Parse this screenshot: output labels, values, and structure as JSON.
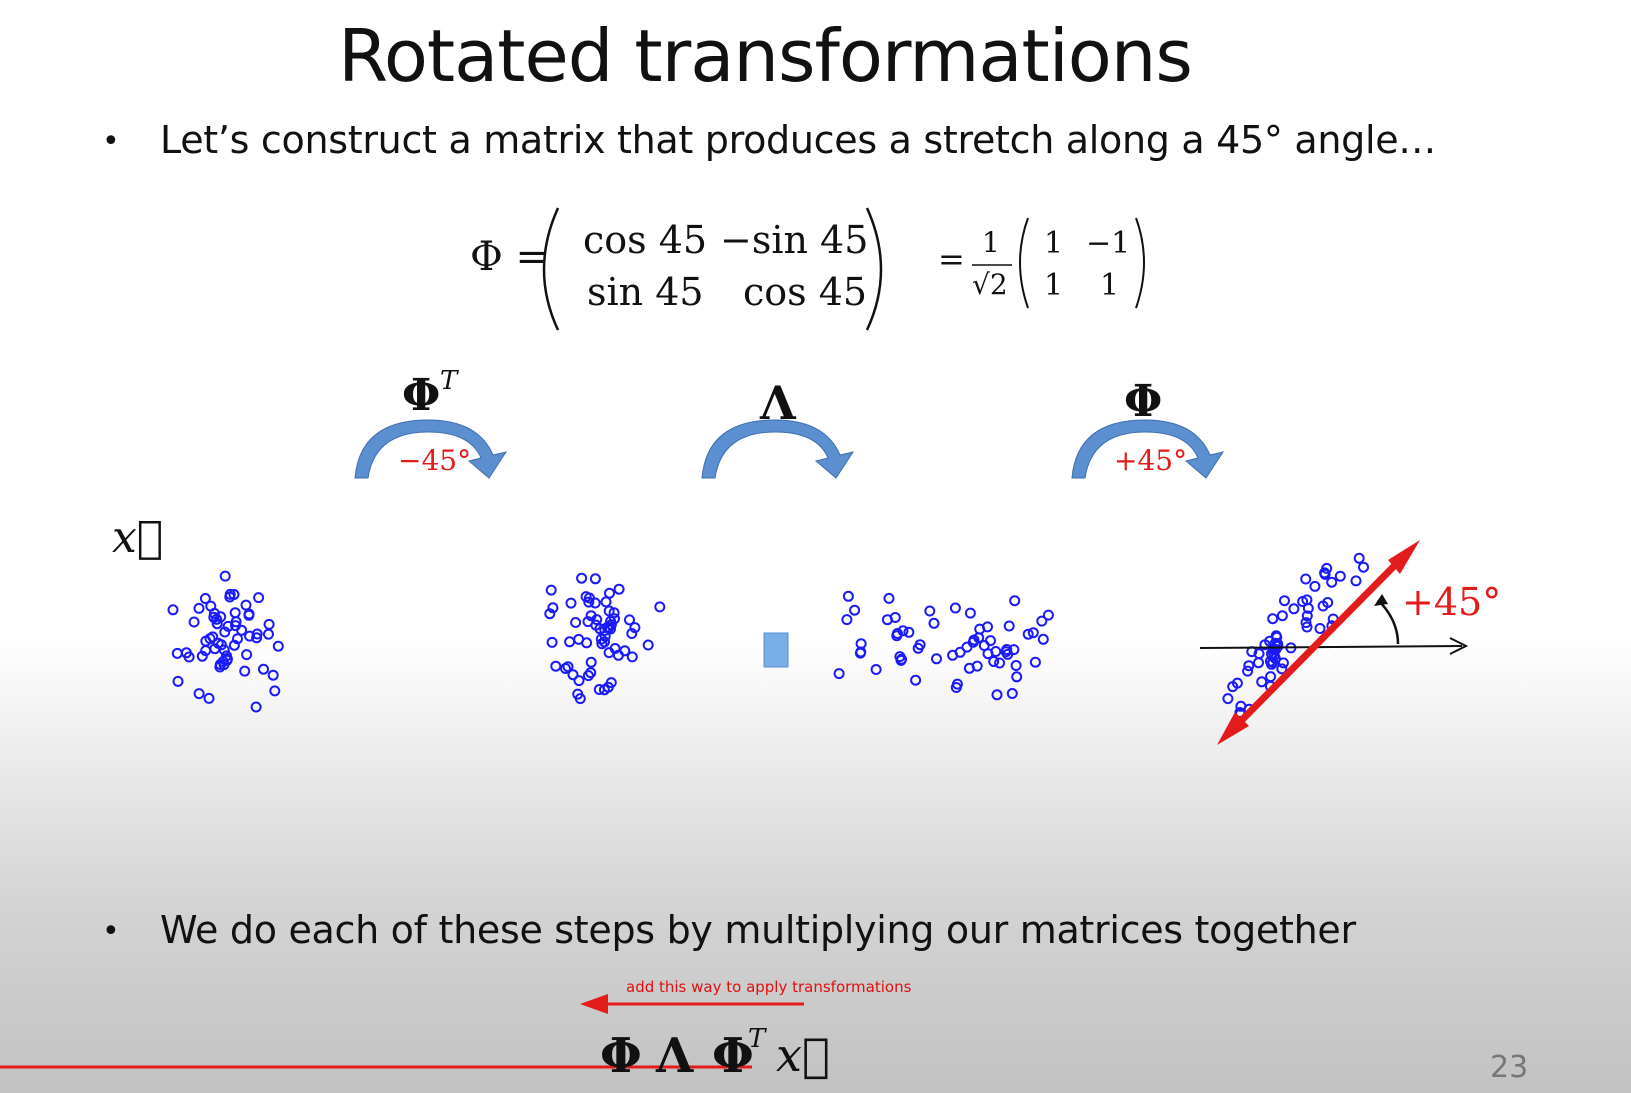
{
  "slide": {
    "title": "Rotated transformations",
    "bullets": [
      {
        "symbol": "•",
        "text": "Let’s construct a matrix that produces a stretch along a 45°  angle…"
      },
      {
        "symbol": "•",
        "text": "We do each of these steps by multiplying our matrices together"
      }
    ],
    "equation": {
      "lhs": "Φ =",
      "matrix": [
        [
          "cos 45",
          "−sin 45"
        ],
        [
          "sin 45",
          "cos 45"
        ]
      ],
      "equals": "=",
      "frac_num": "1",
      "frac_den": "√2",
      "matrix2": [
        [
          "1",
          "−1"
        ],
        [
          "1",
          "1"
        ]
      ]
    },
    "steps": [
      {
        "label": "Φ",
        "sup": "T",
        "angle": "−45°",
        "angle_color": "#e31b1b"
      },
      {
        "label": "Λ",
        "sup": "",
        "angle": "",
        "angle_color": "#e31b1b"
      },
      {
        "label": "Φ",
        "sup": "",
        "angle": "+45°",
        "angle_color": "#e31b1b"
      }
    ],
    "vector_label": "x⃗",
    "rotation_label": "+45°",
    "annotation": "add this way to apply transformations",
    "product": {
      "phi": "Φ",
      "lambda": "Λ",
      "phi_t": "Φ",
      "sup": "T",
      "x": "x⃗"
    },
    "page_number": "23"
  },
  "colors": {
    "points": "#1a1aff",
    "accent": "#e31b1b",
    "arrow_fill": "#5b8fd0",
    "small_square": "#7aaee6"
  }
}
